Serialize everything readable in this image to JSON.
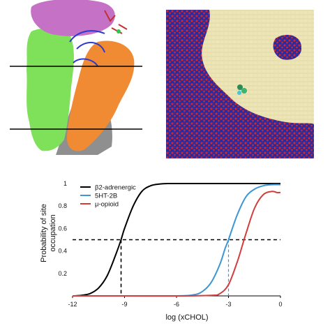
{
  "panels": {
    "top_left": {
      "kind": "protein-surface-render"
    },
    "top_right": {
      "kind": "membrane-snapshot-render"
    }
  },
  "colors": {
    "protein_green": "#7fe05a",
    "protein_orange": "#f08a33",
    "protein_magenta": "#c571c6",
    "membrane_bg": "#ede5b5",
    "membrane_blue": "#2a2a9c",
    "membrane_red": "#d4262a",
    "reference_line": "#000000"
  },
  "chart_data": {
    "type": "line",
    "title": "",
    "xlabel": "log (xCHOL)",
    "ylabel": "Probability of site occupation",
    "xlim": [
      -12,
      0
    ],
    "ylim": [
      0,
      1
    ],
    "x_ticks": [
      -12,
      -9,
      -6,
      -3,
      0
    ],
    "x_tick_labels": [
      "-12",
      "-9",
      "-6",
      "-3",
      "0"
    ],
    "y_ticks": [
      0.2,
      0.4,
      0.6,
      0.8,
      1
    ],
    "y_tick_labels": [
      "0.2",
      "0.4",
      "0.6",
      "0.8",
      "1"
    ],
    "grid": false,
    "legend_position": "top-left",
    "series": [
      {
        "name": "β2-adrenergic",
        "color": "#000000",
        "x": [
          -12,
          -11.5,
          -11,
          -10.5,
          -10,
          -9.5,
          -9.2,
          -9,
          -8.5,
          -8,
          -7.5,
          -7,
          -6.5,
          -6,
          -5,
          -4,
          -3,
          -2,
          -1,
          0
        ],
        "y": [
          0.0,
          0.005,
          0.02,
          0.07,
          0.18,
          0.37,
          0.5,
          0.6,
          0.8,
          0.93,
          0.98,
          0.995,
          1.0,
          1.0,
          1.0,
          1.0,
          1.0,
          1.0,
          1.0,
          1.0
        ]
      },
      {
        "name": "5HT-2B",
        "color": "#3a96d4",
        "x": [
          -12,
          -9,
          -6,
          -5,
          -4.5,
          -4,
          -3.5,
          -3.2,
          -3,
          -2.5,
          -2,
          -1.5,
          -1,
          -0.5,
          0
        ],
        "y": [
          0.0,
          0.0,
          0.0,
          0.01,
          0.04,
          0.12,
          0.28,
          0.42,
          0.5,
          0.72,
          0.88,
          0.95,
          0.98,
          0.99,
          0.99
        ]
      },
      {
        "name": "μ-opioid",
        "color": "#d43c3c",
        "x": [
          -12,
          -9,
          -6,
          -4,
          -3.5,
          -3,
          -2.5,
          -2.2,
          -2,
          -1.5,
          -1,
          -0.5,
          -0.2,
          0
        ],
        "y": [
          0.0,
          0.0,
          0.0,
          0.005,
          0.02,
          0.1,
          0.3,
          0.45,
          0.55,
          0.78,
          0.9,
          0.93,
          0.92,
          0.92
        ]
      }
    ],
    "reference_lines": {
      "horizontal_y": 0.5,
      "vertical_black_x": -9.2,
      "vertical_blue_x": -3.0
    }
  }
}
